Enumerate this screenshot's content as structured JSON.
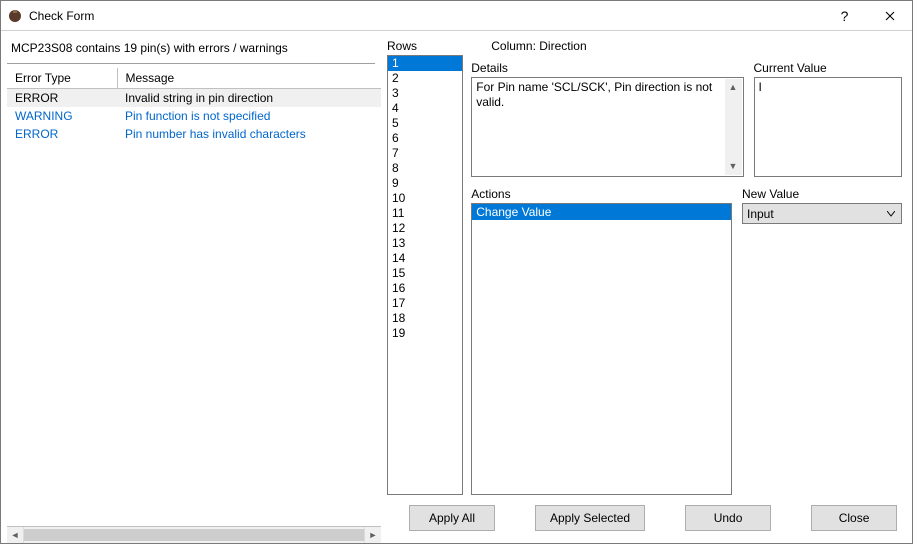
{
  "window": {
    "title": "Check Form"
  },
  "summary": "MCP23S08 contains 19 pin(s) with errors / warnings",
  "errors": {
    "columns": [
      "Error Type",
      "Message"
    ],
    "rows": [
      {
        "type": "ERROR",
        "message": "Invalid string in pin direction",
        "link": false,
        "selected": true
      },
      {
        "type": "WARNING",
        "message": "Pin function is not specified",
        "link": true,
        "selected": false
      },
      {
        "type": "ERROR",
        "message": "Pin number has invalid characters",
        "link": true,
        "selected": false
      }
    ]
  },
  "rows": {
    "label": "Rows",
    "items": [
      "1",
      "2",
      "3",
      "4",
      "5",
      "6",
      "7",
      "8",
      "9",
      "10",
      "11",
      "12",
      "13",
      "14",
      "15",
      "16",
      "17",
      "18",
      "19"
    ],
    "selected_index": 0
  },
  "column_line_prefix": "Column: ",
  "column_line_value": "Direction",
  "details": {
    "label": "Details",
    "text": "For Pin name 'SCL/SCK', Pin direction is not valid."
  },
  "current_value": {
    "label": "Current Value",
    "text": "I"
  },
  "actions": {
    "label": "Actions",
    "items": [
      "Change Value"
    ],
    "selected_index": 0
  },
  "new_value": {
    "label": "New Value",
    "selected": "Input"
  },
  "buttons": {
    "apply_all": "Apply All",
    "apply_selected": "Apply Selected",
    "undo": "Undo",
    "close": "Close"
  },
  "colors": {
    "selection": "#0078d7",
    "link": "#0066cc",
    "border": "#7a7a7a"
  }
}
